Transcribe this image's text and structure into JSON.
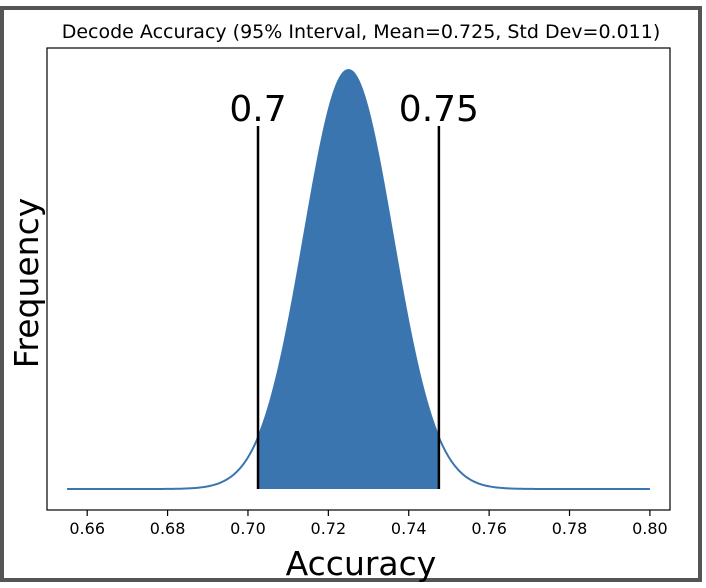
{
  "chart_data": {
    "type": "area",
    "title": "Decode Accuracy (95% Interval, Mean=0.725, Std Dev=0.011)",
    "xlabel": "Accuracy",
    "ylabel": "Frequency",
    "xlim": [
      0.65,
      0.805
    ],
    "xticks": [
      "0.66",
      "0.68",
      "0.70",
      "0.72",
      "0.74",
      "0.76",
      "0.78",
      "0.80"
    ],
    "xtick_values": [
      0.66,
      0.68,
      0.7,
      0.72,
      0.74,
      0.76,
      0.78,
      0.8
    ],
    "curve": {
      "mean": 0.725,
      "std": 0.011,
      "x_start": 0.655,
      "x_end": 0.8,
      "color": "#3b75af"
    },
    "interval": {
      "lower": 0.7025,
      "upper": 0.7475,
      "fill_color": "#3b75af"
    },
    "markers": [
      {
        "label": "0.7",
        "x": 0.7025
      },
      {
        "label": "0.75",
        "x": 0.7475
      }
    ],
    "grid": false
  }
}
